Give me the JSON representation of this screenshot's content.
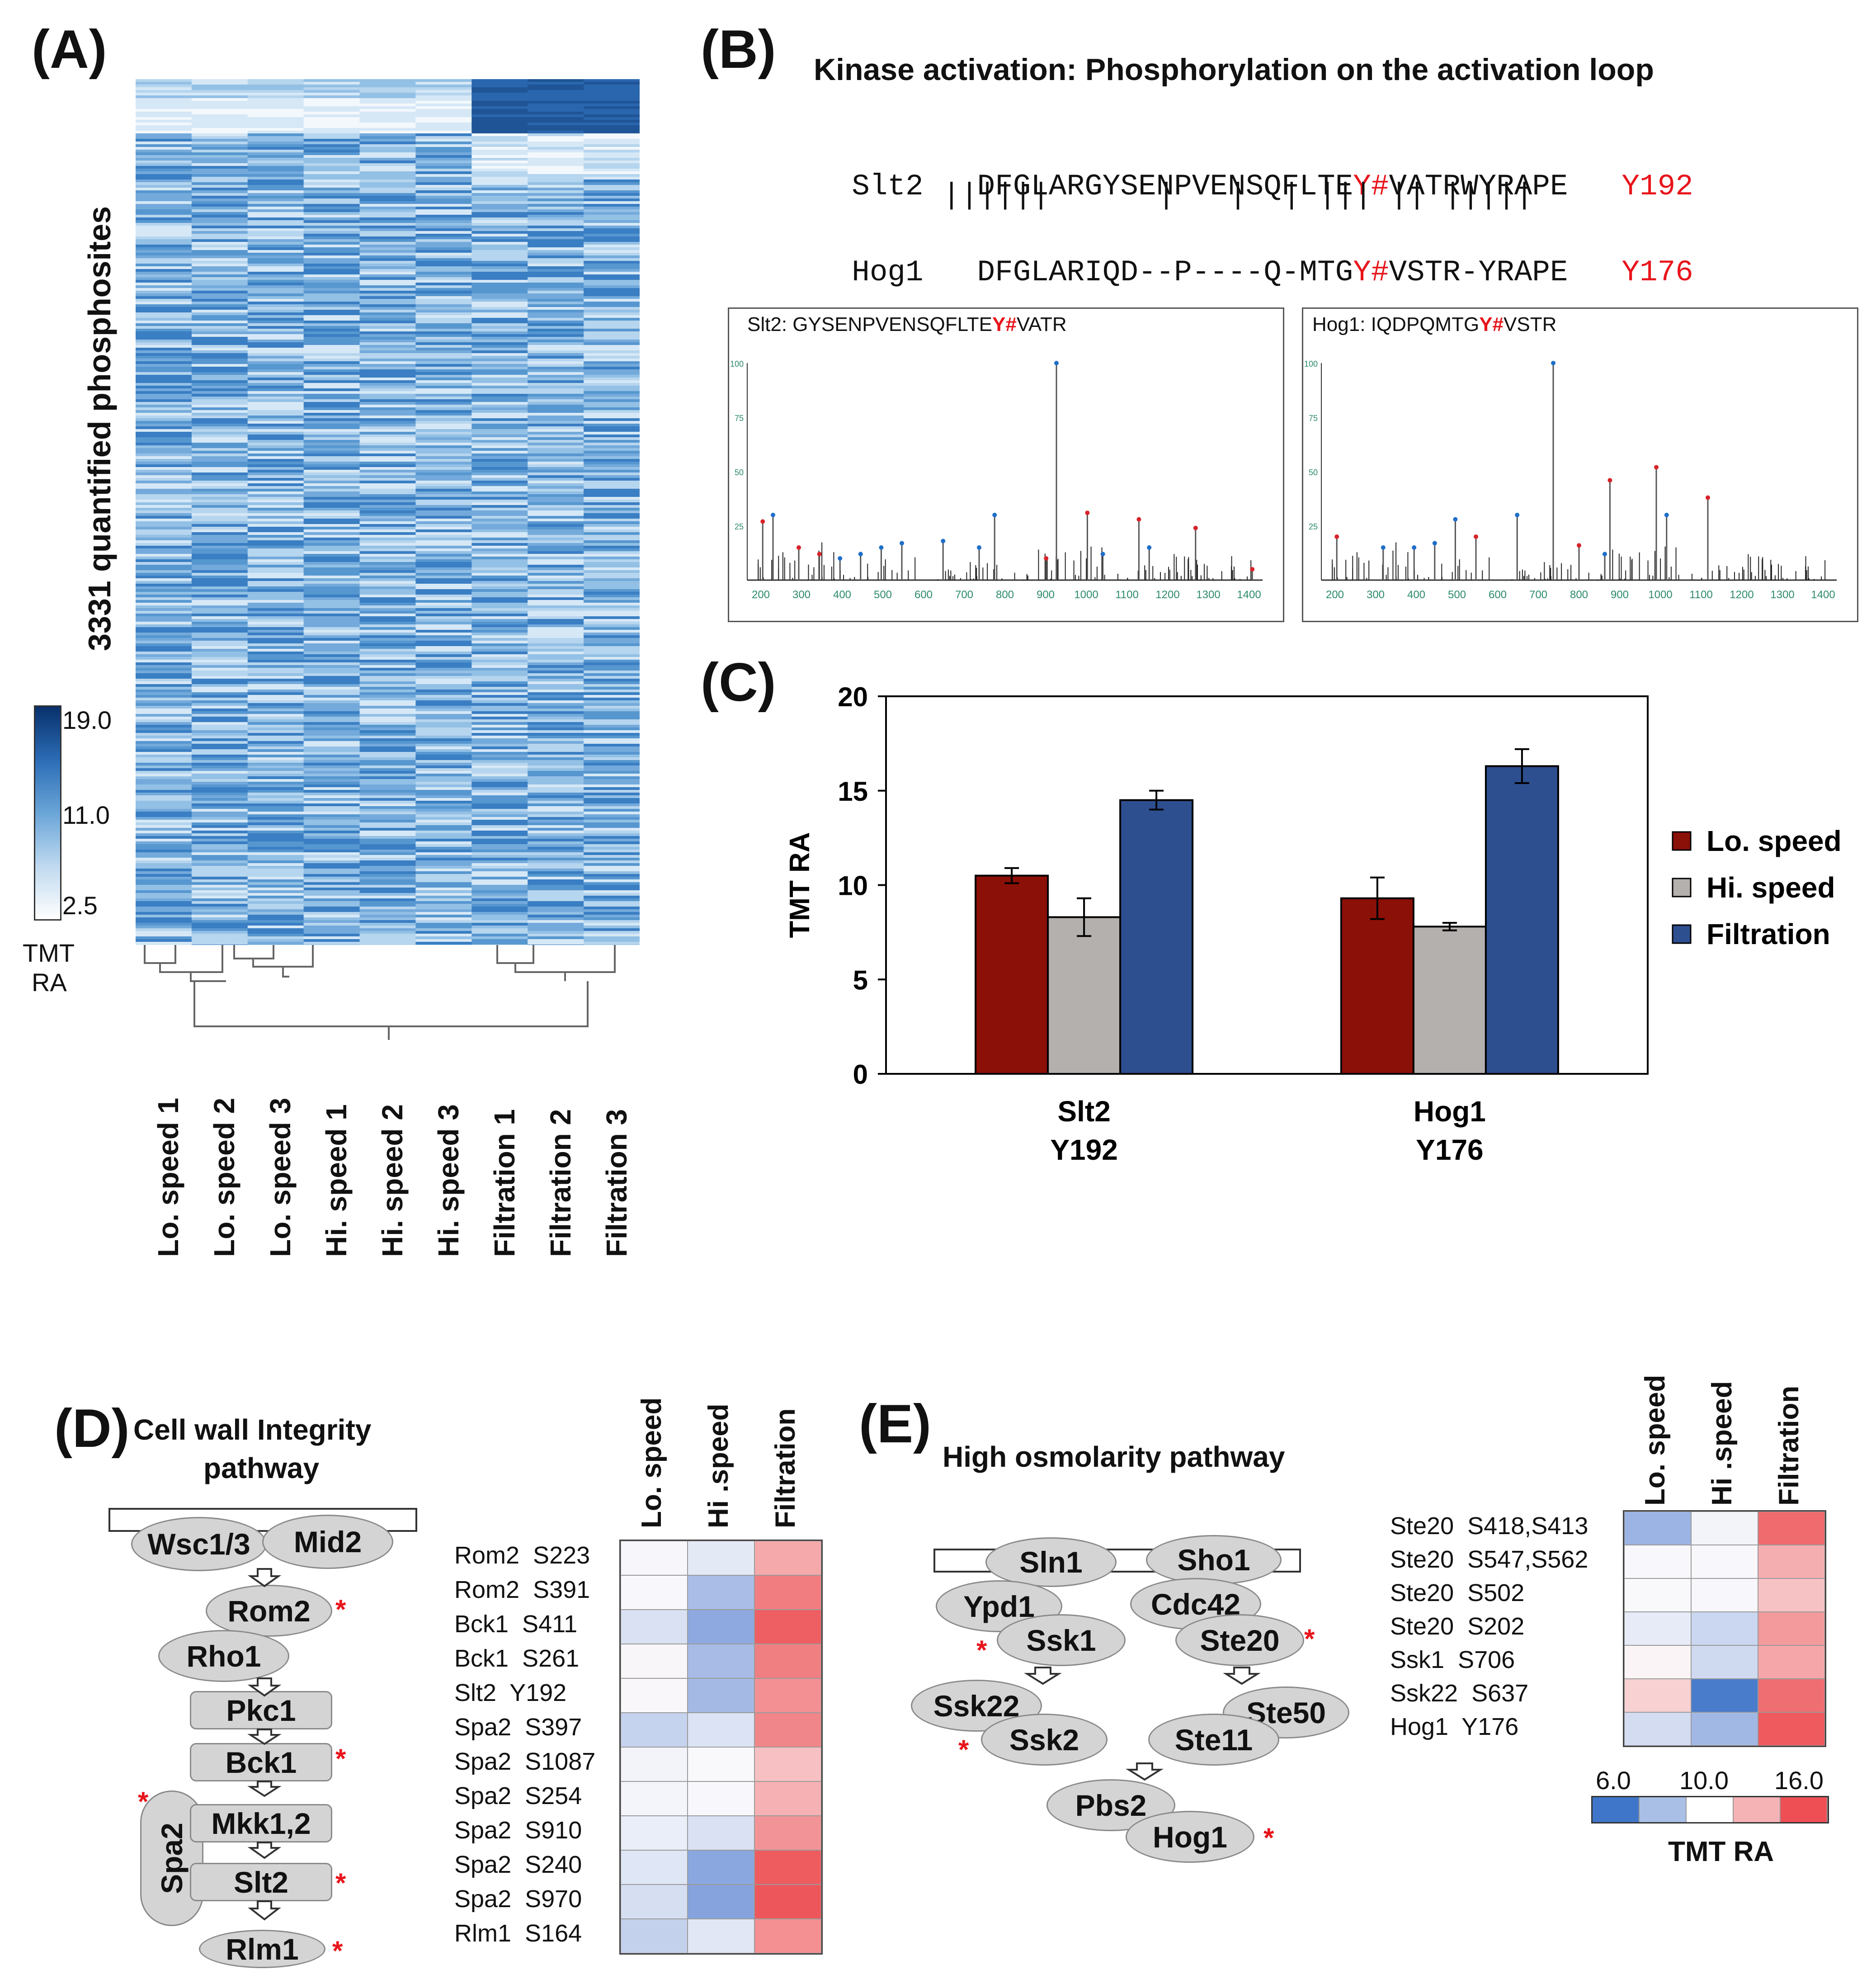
{
  "panel_a": {
    "letter": "(A)",
    "ylabel": "3331 quantified phosphosites",
    "columns": [
      "Lo. speed 1",
      "Lo. speed 2",
      "Lo. speed 3",
      "Hi. speed 1",
      "Hi. speed 2",
      "Hi. speed 3",
      "Filtration 1",
      "Filtration 2",
      "Filtration 3"
    ],
    "scale": {
      "max": "19.0",
      "mid": "11.0",
      "min": "2.5",
      "label_line1": "TMT",
      "label_line2": "RA"
    },
    "colors": {
      "dark": "#08306b",
      "mid": "#4a90cf",
      "light": "#ffffff"
    }
  },
  "panel_b": {
    "letter": "(B)",
    "title": "Kinase activation: Phosphorylation on the activation loop",
    "slt2": {
      "name": "Slt2",
      "seq_pre": "DFGLARGYSENPVENSQFLTE",
      "mod": "Y#",
      "seq_post": "VATRWYRAPE",
      "site": "Y192"
    },
    "match_line": "||||||      |   |  | ||| || |||||",
    "hog1": {
      "name": "Hog1",
      "seq_pre": "DFGLARIQD--P----Q-MTG",
      "mod": "Y#",
      "seq_post": "VSTR-YRAPE",
      "site": "Y176"
    },
    "spectrum1": {
      "title_pre": "Slt2: GYSENPVENSQFLTE",
      "title_mod": "Y#",
      "title_post": "VATR",
      "x_ticks": [
        "200",
        "300",
        "400",
        "500",
        "600",
        "700",
        "800",
        "900",
        "1000",
        "1100",
        "1200",
        "1300",
        "1400"
      ],
      "y_ticks": [
        "100",
        "75",
        "50",
        "25"
      ]
    },
    "spectrum2": {
      "title_pre": "Hog1: IQDPQMTG",
      "title_mod": "Y#",
      "title_post": "VSTR",
      "x_ticks": [
        "200",
        "300",
        "400",
        "500",
        "600",
        "700",
        "800",
        "900",
        "1000",
        "1100",
        "1200",
        "1300",
        "1400"
      ],
      "y_ticks": [
        "100",
        "75",
        "50",
        "25"
      ]
    }
  },
  "panel_c": {
    "letter": "(C)",
    "chart_data": {
      "type": "bar",
      "categories": [
        "Slt2 Y192",
        "Hog1 Y176"
      ],
      "category_lines": [
        [
          "Slt2",
          "Y192"
        ],
        [
          "Hog1",
          "Y176"
        ]
      ],
      "series": [
        {
          "name": "Lo. speed",
          "color": "#8b1008",
          "values": [
            10.5,
            9.3
          ],
          "errors": [
            0.4,
            1.1
          ]
        },
        {
          "name": "Hi. speed",
          "color": "#b4b0ae",
          "values": [
            8.3,
            7.8
          ],
          "errors": [
            1.0,
            0.2
          ]
        },
        {
          "name": "Filtration",
          "color": "#2e4f8f",
          "values": [
            14.5,
            16.3
          ],
          "errors": [
            0.5,
            0.9
          ]
        }
      ],
      "ylabel": "TMT RA",
      "ylim": [
        0,
        20
      ],
      "yticks": [
        0,
        5,
        10,
        15,
        20
      ],
      "legend_position": "right"
    }
  },
  "panel_d": {
    "letter": "(D)",
    "title_line1": "Cell wall Integrity",
    "title_line2": "pathway",
    "nodes": {
      "wsc": "Wsc1/3",
      "mid2": "Mid2",
      "rom2": "Rom2",
      "rho1": "Rho1",
      "pkc1": "Pkc1",
      "bck1": "Bck1",
      "mkk": "Mkk1,2",
      "spa2": "Spa2",
      "slt2": "Slt2",
      "rlm1": "Rlm1"
    },
    "star": "*",
    "columns": [
      "Lo. speed",
      "Hi .speed",
      "Filtration"
    ],
    "rows": [
      {
        "label": "Rom2  S223",
        "colors": [
          "#f6f6fb",
          "#e4e9f6",
          "#f5a9ab"
        ]
      },
      {
        "label": "Rom2  S391",
        "colors": [
          "#f8f8fc",
          "#a9bde6",
          "#f27d80"
        ]
      },
      {
        "label": "Bck1  S411",
        "colors": [
          "#d9e1f3",
          "#8ea9df",
          "#ee5f63"
        ]
      },
      {
        "label": "Bck1  S261",
        "colors": [
          "#f9f6fa",
          "#a7bbe6",
          "#f07f82"
        ]
      },
      {
        "label": "Slt2  Y192",
        "colors": [
          "#f9f7fa",
          "#a5b9e5",
          "#f29093"
        ]
      },
      {
        "label": "Spa2  S397",
        "colors": [
          "#c6d3ee",
          "#dbe3f4",
          "#f0868a"
        ]
      },
      {
        "label": "Spa2  S1087",
        "colors": [
          "#f3f4fa",
          "#f9f9fc",
          "#f7c0c2"
        ]
      },
      {
        "label": "Spa2  S254",
        "colors": [
          "#f4f5fb",
          "#f8f8fc",
          "#f5b1b3"
        ]
      },
      {
        "label": "Spa2  S910",
        "colors": [
          "#eaeef8",
          "#d9e1f3",
          "#f29497"
        ]
      },
      {
        "label": "Spa2  S240",
        "colors": [
          "#dfe6f5",
          "#8ba7df",
          "#ee5c60"
        ]
      },
      {
        "label": "Spa2  S970",
        "colors": [
          "#d6dff2",
          "#86a3dd",
          "#ed575b"
        ]
      },
      {
        "label": "Rlm1  S164",
        "colors": [
          "#c4d1ed",
          "#e1e7f5",
          "#f48f92"
        ]
      }
    ]
  },
  "panel_e": {
    "letter": "(E)",
    "title": "High osmolarity pathway",
    "nodes": {
      "sln1": "Sln1",
      "sho1": "Sho1",
      "ypd1": "Ypd1",
      "ssk1": "Ssk1",
      "cdc42": "Cdc42",
      "ste20": "Ste20",
      "ssk22": "Ssk22",
      "ssk2": "Ssk2",
      "ste50": "Ste50",
      "ste11": "Ste11",
      "pbs2": "Pbs2",
      "hog1": "Hog1"
    },
    "star": "*",
    "columns": [
      "Lo. speed",
      "Hi .speed",
      "Filtration"
    ],
    "rows": [
      {
        "label": "Ste20  S418,S413",
        "colors": [
          "#9bb4e3",
          "#f2f4fa",
          "#ef6b6e"
        ]
      },
      {
        "label": "Ste20  S547,S562",
        "colors": [
          "#f8f8fc",
          "#f8f8fc",
          "#f5aeb0"
        ]
      },
      {
        "label": "Ste20  S502",
        "colors": [
          "#f9f8fb",
          "#f8f7fb",
          "#f7c2c4"
        ]
      },
      {
        "label": "Ste20  S202",
        "colors": [
          "#e6ebf7",
          "#cbd7f0",
          "#f39a9d"
        ]
      },
      {
        "label": "Ssk1  S706",
        "colors": [
          "#fbf4f7",
          "#cfd9f0",
          "#f5a6a9"
        ]
      },
      {
        "label": "Ssk22  S637",
        "colors": [
          "#f8d1d3",
          "#4a7ccc",
          "#ef6e71"
        ]
      },
      {
        "label": "Hog1  Y176",
        "colors": [
          "#d4dcf2",
          "#a2b8e4",
          "#ee5a5e"
        ]
      }
    ],
    "scale": {
      "min": "6.0",
      "mid": "10.0",
      "max": "16.0",
      "label": "TMT RA"
    },
    "scale_colors": [
      "#3f76c9",
      "#a9bfe6",
      "#ffffff",
      "#f6b3b6",
      "#ee4f54"
    ]
  }
}
